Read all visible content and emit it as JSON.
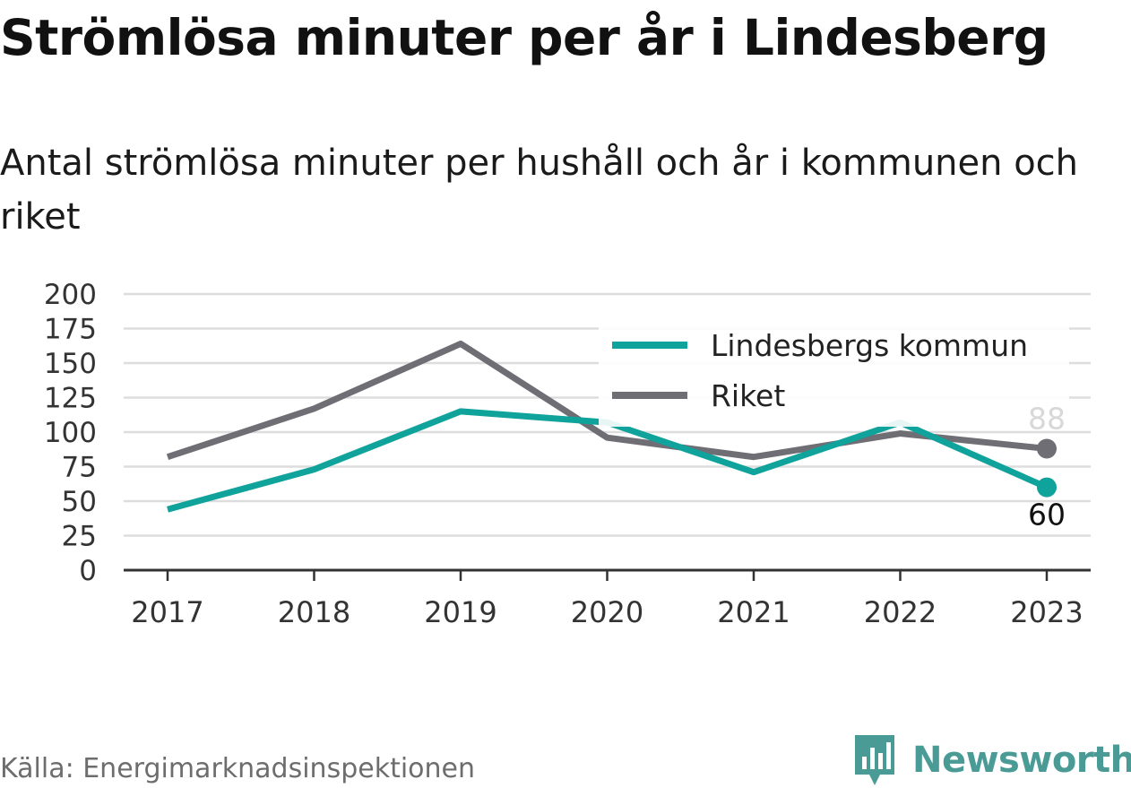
{
  "header": {
    "title": "Strömlösa minuter per år i Lindesberg",
    "subtitle": "Antal strömlösa minuter per hushåll och år i kommunen och riket"
  },
  "footer": {
    "source": "Källa: Energimarknadsinspektionen",
    "brand": "Newsworthy"
  },
  "colors": {
    "lindesberg": "#10a39b",
    "riket": "#6e6e74",
    "grid": "#dddddd",
    "axis": "#333333",
    "brand": "#4a9b96"
  },
  "chart_data": {
    "type": "line",
    "categories": [
      "2017",
      "2018",
      "2019",
      "2020",
      "2021",
      "2022",
      "2023"
    ],
    "series": [
      {
        "name": "Lindesbergs kommun",
        "values": [
          44,
          73,
          115,
          107,
          71,
          107,
          60
        ],
        "color": "#10a39b",
        "end_label": "60"
      },
      {
        "name": "Riket",
        "values": [
          82,
          117,
          164,
          96,
          82,
          99,
          88
        ],
        "color": "#6e6e74",
        "end_label": "88"
      }
    ],
    "yticks": [
      "0",
      "25",
      "50",
      "75",
      "100",
      "125",
      "150",
      "175",
      "200"
    ],
    "ylim": [
      0,
      200
    ],
    "grid": true,
    "legend_position": "top-right"
  }
}
